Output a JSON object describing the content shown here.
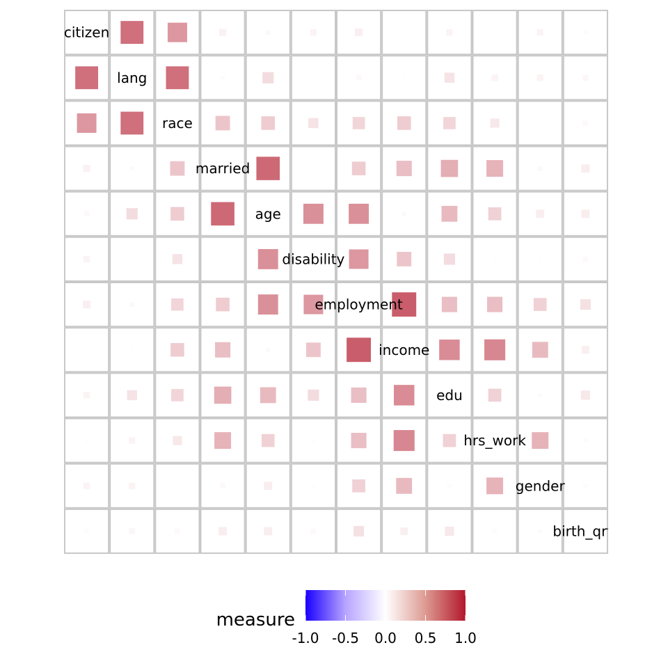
{
  "chart_data": {
    "type": "heatmap",
    "variables": [
      "citizen",
      "lang",
      "race",
      "married",
      "age",
      "disability",
      "employment",
      "income",
      "edu",
      "hrs_work",
      "gender",
      "birth_qrtr"
    ],
    "matrix": [
      [
        1.0,
        0.62,
        0.45,
        0.06,
        0.03,
        0.05,
        0.07,
        0.0,
        0.05,
        0.01,
        0.05,
        0.02
      ],
      [
        0.62,
        1.0,
        0.62,
        0.02,
        0.15,
        0.0,
        0.03,
        0.01,
        0.12,
        0.05,
        0.05,
        0.04
      ],
      [
        0.45,
        0.62,
        1.0,
        0.25,
        0.22,
        0.12,
        0.18,
        0.22,
        0.18,
        0.1,
        0.0,
        0.03
      ],
      [
        0.06,
        0.02,
        0.25,
        1.0,
        0.65,
        0.0,
        0.22,
        0.28,
        0.35,
        0.33,
        0.03,
        0.08
      ],
      [
        0.03,
        0.15,
        0.22,
        0.65,
        1.0,
        0.48,
        0.48,
        -0.02,
        0.3,
        0.2,
        0.08,
        0.08
      ],
      [
        0.05,
        0.0,
        0.12,
        0.0,
        0.48,
        1.0,
        0.45,
        0.25,
        0.15,
        0.01,
        0.01,
        0.03
      ],
      [
        0.07,
        0.03,
        0.18,
        0.22,
        0.48,
        0.45,
        1.0,
        0.7,
        0.28,
        0.28,
        0.2,
        0.13
      ],
      [
        0.0,
        0.01,
        0.22,
        0.28,
        -0.02,
        0.25,
        0.7,
        1.0,
        0.5,
        0.52,
        0.3,
        0.07
      ],
      [
        0.05,
        0.12,
        0.18,
        0.35,
        0.3,
        0.15,
        0.28,
        0.5,
        1.0,
        0.2,
        0.02,
        0.1
      ],
      [
        0.01,
        0.05,
        0.1,
        0.33,
        0.2,
        0.01,
        0.28,
        0.52,
        0.2,
        1.0,
        0.33,
        0.02
      ],
      [
        0.05,
        0.05,
        0.0,
        0.03,
        0.08,
        0.01,
        0.2,
        0.3,
        0.02,
        0.33,
        1.0,
        0.02
      ],
      [
        0.02,
        0.04,
        0.03,
        0.08,
        0.08,
        0.03,
        0.13,
        0.07,
        0.1,
        0.02,
        0.02,
        1.0
      ]
    ],
    "color_scale": {
      "title": "measure",
      "min": -1.0,
      "max": 1.0,
      "ticks": [
        -1.0,
        -0.5,
        0.0,
        0.5,
        1.0
      ],
      "tick_labels": [
        "-1.0",
        "-0.5",
        "0.0",
        "0.5",
        "1.0"
      ],
      "low_color": "#1a00ff",
      "mid_color": "#ffffff",
      "high_color": "#b2182b"
    },
    "legend_position": "bottom",
    "grid": true
  }
}
